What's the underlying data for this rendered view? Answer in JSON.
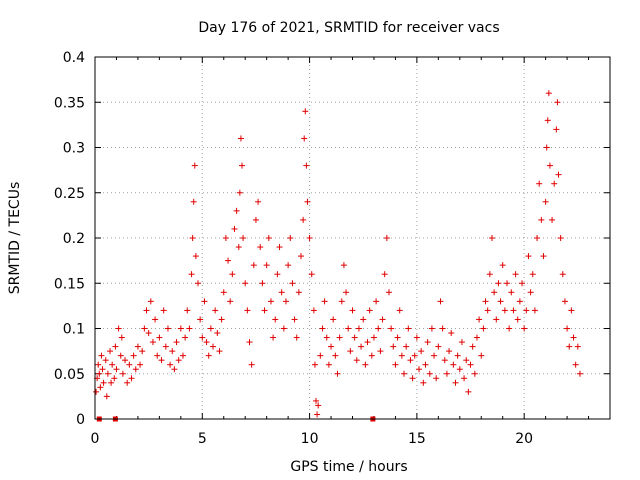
{
  "chart_data": {
    "type": "scatter",
    "title": "Day 176 of 2021, SRMTID for receiver vacs",
    "xlabel": "GPS time / hours",
    "ylabel": "SRMTID / TECUs",
    "xlim": [
      0,
      24
    ],
    "ylim": [
      0,
      0.4
    ],
    "x_ticks": [
      0,
      5,
      10,
      15,
      20
    ],
    "x_tick_labels": [
      "0",
      "5",
      "10",
      "15",
      "20"
    ],
    "y_ticks": [
      0,
      0.05,
      0.1,
      0.15,
      0.2,
      0.25,
      0.3,
      0.35,
      0.4
    ],
    "y_tick_labels": [
      "0",
      "0.05",
      "0.1",
      "0.15",
      "0.2",
      "0.25",
      "0.3",
      "0.35",
      "0.4"
    ],
    "grid": true,
    "marker": "+",
    "color": "#e00000",
    "zero_markers_x": [
      0.2,
      0.95,
      12.95
    ],
    "series": [
      {
        "name": "SRMTID",
        "points": [
          [
            0.05,
            0.03
          ],
          [
            0.1,
            0.045
          ],
          [
            0.15,
            0.06
          ],
          [
            0.2,
            0.05
          ],
          [
            0.25,
            0.035
          ],
          [
            0.3,
            0.07
          ],
          [
            0.35,
            0.055
          ],
          [
            0.4,
            0.04
          ],
          [
            0.5,
            0.065
          ],
          [
            0.55,
            0.025
          ],
          [
            0.6,
            0.05
          ],
          [
            0.7,
            0.075
          ],
          [
            0.75,
            0.04
          ],
          [
            0.8,
            0.06
          ],
          [
            0.9,
            0.045
          ],
          [
            0.95,
            0.08
          ],
          [
            1.0,
            0.055
          ],
          [
            1.1,
            0.1
          ],
          [
            1.2,
            0.07
          ],
          [
            1.25,
            0.09
          ],
          [
            1.3,
            0.05
          ],
          [
            1.4,
            0.065
          ],
          [
            1.5,
            0.04
          ],
          [
            1.6,
            0.06
          ],
          [
            1.7,
            0.045
          ],
          [
            1.8,
            0.07
          ],
          [
            1.9,
            0.055
          ],
          [
            2.0,
            0.08
          ],
          [
            2.1,
            0.06
          ],
          [
            2.2,
            0.075
          ],
          [
            2.3,
            0.1
          ],
          [
            2.4,
            0.12
          ],
          [
            2.5,
            0.095
          ],
          [
            2.6,
            0.13
          ],
          [
            2.7,
            0.085
          ],
          [
            2.8,
            0.11
          ],
          [
            2.9,
            0.07
          ],
          [
            3.0,
            0.09
          ],
          [
            3.1,
            0.065
          ],
          [
            3.2,
            0.12
          ],
          [
            3.3,
            0.08
          ],
          [
            3.4,
            0.1
          ],
          [
            3.5,
            0.06
          ],
          [
            3.6,
            0.075
          ],
          [
            3.7,
            0.055
          ],
          [
            3.8,
            0.085
          ],
          [
            3.9,
            0.065
          ],
          [
            4.0,
            0.1
          ],
          [
            4.1,
            0.07
          ],
          [
            4.2,
            0.09
          ],
          [
            4.3,
            0.12
          ],
          [
            4.4,
            0.1
          ],
          [
            4.5,
            0.16
          ],
          [
            4.55,
            0.2
          ],
          [
            4.6,
            0.24
          ],
          [
            4.65,
            0.28
          ],
          [
            4.7,
            0.18
          ],
          [
            4.8,
            0.15
          ],
          [
            4.9,
            0.11
          ],
          [
            5.0,
            0.09
          ],
          [
            5.1,
            0.13
          ],
          [
            5.2,
            0.085
          ],
          [
            5.3,
            0.07
          ],
          [
            5.4,
            0.1
          ],
          [
            5.5,
            0.08
          ],
          [
            5.6,
            0.12
          ],
          [
            5.7,
            0.095
          ],
          [
            5.8,
            0.075
          ],
          [
            5.9,
            0.11
          ],
          [
            6.0,
            0.14
          ],
          [
            6.1,
            0.2
          ],
          [
            6.2,
            0.175
          ],
          [
            6.3,
            0.13
          ],
          [
            6.4,
            0.16
          ],
          [
            6.5,
            0.21
          ],
          [
            6.6,
            0.23
          ],
          [
            6.7,
            0.19
          ],
          [
            6.75,
            0.25
          ],
          [
            6.8,
            0.31
          ],
          [
            6.85,
            0.28
          ],
          [
            6.9,
            0.2
          ],
          [
            7.0,
            0.15
          ],
          [
            7.1,
            0.12
          ],
          [
            7.2,
            0.085
          ],
          [
            7.3,
            0.06
          ],
          [
            7.4,
            0.17
          ],
          [
            7.5,
            0.22
          ],
          [
            7.6,
            0.24
          ],
          [
            7.7,
            0.19
          ],
          [
            7.8,
            0.15
          ],
          [
            7.9,
            0.12
          ],
          [
            8.0,
            0.17
          ],
          [
            8.1,
            0.2
          ],
          [
            8.2,
            0.13
          ],
          [
            8.3,
            0.09
          ],
          [
            8.4,
            0.11
          ],
          [
            8.5,
            0.16
          ],
          [
            8.6,
            0.19
          ],
          [
            8.7,
            0.14
          ],
          [
            8.8,
            0.1
          ],
          [
            8.9,
            0.13
          ],
          [
            9.0,
            0.17
          ],
          [
            9.1,
            0.2
          ],
          [
            9.2,
            0.15
          ],
          [
            9.3,
            0.11
          ],
          [
            9.4,
            0.09
          ],
          [
            9.5,
            0.14
          ],
          [
            9.6,
            0.18
          ],
          [
            9.7,
            0.22
          ],
          [
            9.75,
            0.31
          ],
          [
            9.8,
            0.34
          ],
          [
            9.85,
            0.28
          ],
          [
            9.9,
            0.24
          ],
          [
            10.0,
            0.2
          ],
          [
            10.1,
            0.16
          ],
          [
            10.2,
            0.12
          ],
          [
            10.25,
            0.06
          ],
          [
            10.3,
            0.02
          ],
          [
            10.35,
            0.005
          ],
          [
            10.4,
            0.015
          ],
          [
            10.5,
            0.07
          ],
          [
            10.6,
            0.1
          ],
          [
            10.7,
            0.13
          ],
          [
            10.8,
            0.09
          ],
          [
            10.9,
            0.06
          ],
          [
            11.0,
            0.08
          ],
          [
            11.1,
            0.11
          ],
          [
            11.2,
            0.07
          ],
          [
            11.3,
            0.05
          ],
          [
            11.4,
            0.09
          ],
          [
            11.5,
            0.13
          ],
          [
            11.6,
            0.17
          ],
          [
            11.7,
            0.14
          ],
          [
            11.8,
            0.1
          ],
          [
            11.9,
            0.075
          ],
          [
            12.0,
            0.12
          ],
          [
            12.1,
            0.09
          ],
          [
            12.2,
            0.065
          ],
          [
            12.3,
            0.1
          ],
          [
            12.4,
            0.08
          ],
          [
            12.5,
            0.11
          ],
          [
            12.6,
            0.06
          ],
          [
            12.7,
            0.085
          ],
          [
            12.8,
            0.12
          ],
          [
            12.9,
            0.07
          ],
          [
            13.0,
            0.09
          ],
          [
            13.1,
            0.13
          ],
          [
            13.2,
            0.1
          ],
          [
            13.3,
            0.075
          ],
          [
            13.4,
            0.11
          ],
          [
            13.5,
            0.16
          ],
          [
            13.6,
            0.2
          ],
          [
            13.7,
            0.14
          ],
          [
            13.8,
            0.1
          ],
          [
            13.9,
            0.08
          ],
          [
            14.0,
            0.06
          ],
          [
            14.1,
            0.09
          ],
          [
            14.2,
            0.12
          ],
          [
            14.3,
            0.07
          ],
          [
            14.4,
            0.05
          ],
          [
            14.5,
            0.08
          ],
          [
            14.6,
            0.1
          ],
          [
            14.7,
            0.065
          ],
          [
            14.8,
            0.045
          ],
          [
            14.9,
            0.07
          ],
          [
            15.0,
            0.09
          ],
          [
            15.1,
            0.055
          ],
          [
            15.2,
            0.075
          ],
          [
            15.3,
            0.04
          ],
          [
            15.4,
            0.06
          ],
          [
            15.5,
            0.085
          ],
          [
            15.6,
            0.05
          ],
          [
            15.7,
            0.1
          ],
          [
            15.8,
            0.07
          ],
          [
            15.9,
            0.045
          ],
          [
            16.0,
            0.08
          ],
          [
            16.1,
            0.13
          ],
          [
            16.2,
            0.1
          ],
          [
            16.3,
            0.065
          ],
          [
            16.4,
            0.05
          ],
          [
            16.5,
            0.075
          ],
          [
            16.6,
            0.095
          ],
          [
            16.7,
            0.06
          ],
          [
            16.8,
            0.04
          ],
          [
            16.9,
            0.07
          ],
          [
            17.0,
            0.055
          ],
          [
            17.1,
            0.085
          ],
          [
            17.2,
            0.045
          ],
          [
            17.3,
            0.065
          ],
          [
            17.4,
            0.03
          ],
          [
            17.5,
            0.06
          ],
          [
            17.6,
            0.08
          ],
          [
            17.7,
            0.05
          ],
          [
            17.8,
            0.09
          ],
          [
            17.9,
            0.11
          ],
          [
            18.0,
            0.07
          ],
          [
            18.1,
            0.1
          ],
          [
            18.2,
            0.13
          ],
          [
            18.3,
            0.12
          ],
          [
            18.4,
            0.16
          ],
          [
            18.5,
            0.2
          ],
          [
            18.6,
            0.14
          ],
          [
            18.7,
            0.11
          ],
          [
            18.8,
            0.15
          ],
          [
            18.9,
            0.13
          ],
          [
            19.0,
            0.17
          ],
          [
            19.1,
            0.12
          ],
          [
            19.2,
            0.15
          ],
          [
            19.3,
            0.1
          ],
          [
            19.4,
            0.14
          ],
          [
            19.5,
            0.12
          ],
          [
            19.6,
            0.16
          ],
          [
            19.7,
            0.11
          ],
          [
            19.8,
            0.13
          ],
          [
            19.9,
            0.15
          ],
          [
            20.0,
            0.1
          ],
          [
            20.1,
            0.12
          ],
          [
            20.2,
            0.18
          ],
          [
            20.3,
            0.14
          ],
          [
            20.4,
            0.16
          ],
          [
            20.5,
            0.12
          ],
          [
            20.6,
            0.2
          ],
          [
            20.7,
            0.26
          ],
          [
            20.8,
            0.22
          ],
          [
            20.9,
            0.18
          ],
          [
            21.0,
            0.24
          ],
          [
            21.05,
            0.3
          ],
          [
            21.1,
            0.33
          ],
          [
            21.15,
            0.36
          ],
          [
            21.2,
            0.28
          ],
          [
            21.3,
            0.22
          ],
          [
            21.4,
            0.26
          ],
          [
            21.5,
            0.32
          ],
          [
            21.55,
            0.35
          ],
          [
            21.6,
            0.27
          ],
          [
            21.7,
            0.2
          ],
          [
            21.8,
            0.16
          ],
          [
            21.9,
            0.13
          ],
          [
            22.0,
            0.1
          ],
          [
            22.1,
            0.08
          ],
          [
            22.2,
            0.12
          ],
          [
            22.3,
            0.09
          ],
          [
            22.4,
            0.06
          ],
          [
            22.5,
            0.08
          ],
          [
            22.6,
            0.05
          ]
        ]
      }
    ]
  }
}
